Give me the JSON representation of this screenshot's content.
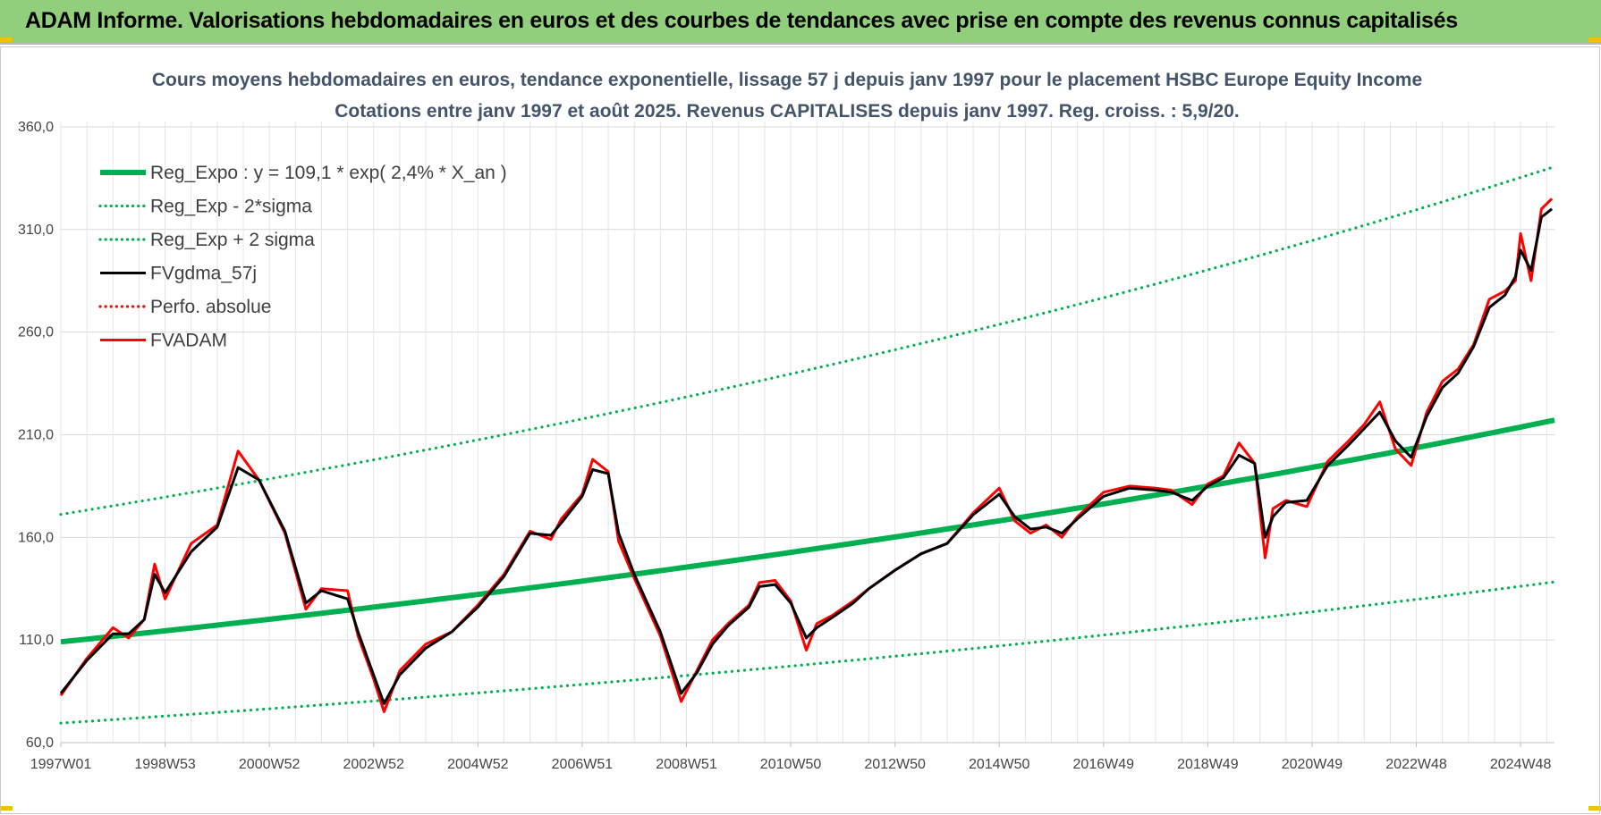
{
  "banner": {
    "text": "ADAM Informe. Valorisations hebdomadaires en euros et des courbes de tendances avec prise en compte des revenus connus capitalisés"
  },
  "colors": {
    "banner_bg": "#92cf7c",
    "reg_expo": "#00b050",
    "reg_bands": "#00b050",
    "fvgdma": "#000000",
    "fvadam": "#ff0000",
    "perfo": "#ff0000"
  },
  "chart_data": {
    "type": "line",
    "title": "Cours moyens hebdomadaires en euros, tendance exponentielle, lissage 57 j depuis janv 1997  pour le  placement HSBC Europe Equity Income",
    "subtitle": "Cotations entre janv 1997 et août 2025.  Revenus CAPITALISES depuis janv 1997.  Reg.  croiss. : 5,9/20.",
    "xlabel": "",
    "ylabel": "",
    "ylim": [
      60,
      380
    ],
    "x_range": [
      1997.0,
      2025.65
    ],
    "yticks": [
      "360,0",
      "310,0",
      "260,0",
      "210,0",
      "160,0",
      "110,0",
      "60,0"
    ],
    "ytick_values": [
      360,
      310,
      260,
      210,
      160,
      110,
      60
    ],
    "xticks": [
      "1997W01",
      "1998W53",
      "2000W52",
      "2002W52",
      "2004W52",
      "2006W51",
      "2008W51",
      "2010W50",
      "2012W50",
      "2014W50",
      "2016W49",
      "2018W49",
      "2020W49",
      "2022W48",
      "2024W48"
    ],
    "xtick_values": [
      1997.0,
      1999.0,
      2001.0,
      2003.0,
      2005.0,
      2007.0,
      2009.0,
      2011.0,
      2013.0,
      2015.0,
      2017.0,
      2019.0,
      2021.0,
      2023.0,
      2025.0
    ],
    "grid": true,
    "legend_position": "top-left",
    "legend": [
      {
        "name": "Reg_Expo : y = 109,1 * exp( 2,4% *  X_an )",
        "style": "solid-thick",
        "color": "#00b050"
      },
      {
        "name": "Reg_Exp - 2*sigma",
        "style": "dotted",
        "color": "#00b050"
      },
      {
        "name": "Reg_Exp + 2 sigma",
        "style": "dotted",
        "color": "#00b050"
      },
      {
        "name": "FVgdma_57j",
        "style": "solid",
        "color": "#000000"
      },
      {
        "name": "Perfo. absolue",
        "style": "dotted",
        "color": "#ff0000"
      },
      {
        "name": "FVADAM",
        "style": "solid",
        "color": "#ff0000"
      }
    ],
    "series": [
      {
        "name": "Reg_Expo : y = 109,1 * exp( 2,4% *  X_an )",
        "x": [
          1997.0,
          2001.0,
          2005.0,
          2009.0,
          2013.0,
          2017.0,
          2021.0,
          2025.65
        ],
        "y": [
          109.1,
          120.1,
          132.2,
          145.5,
          160.2,
          176.3,
          194.1,
          217.1
        ]
      },
      {
        "name": "Reg_Exp - 2*sigma",
        "x": [
          1997.0,
          2001.0,
          2005.0,
          2009.0,
          2013.0,
          2017.0,
          2021.0,
          2025.65
        ],
        "y": [
          69.5,
          76.5,
          84.2,
          92.7,
          102.1,
          112.4,
          123.7,
          138.3
        ]
      },
      {
        "name": "Reg_Exp + 2 sigma",
        "x": [
          1997.0,
          2001.0,
          2005.0,
          2009.0,
          2013.0,
          2017.0,
          2021.0,
          2025.65
        ],
        "y": [
          171.2,
          188.5,
          207.5,
          228.4,
          251.4,
          276.7,
          304.6,
          340.6
        ]
      },
      {
        "name": "FVADAM",
        "x": [
          1997.0,
          1997.5,
          1998.0,
          1998.3,
          1998.6,
          1998.8,
          1999.0,
          1999.5,
          2000.0,
          2000.4,
          2000.8,
          2001.3,
          2001.7,
          2002.0,
          2002.5,
          2002.7,
          2003.0,
          2003.2,
          2003.5,
          2004.0,
          2004.5,
          2005.0,
          2005.5,
          2006.0,
          2006.4,
          2006.6,
          2007.0,
          2007.2,
          2007.5,
          2007.7,
          2008.0,
          2008.5,
          2008.9,
          2009.2,
          2009.5,
          2009.8,
          2010.2,
          2010.4,
          2010.7,
          2011.0,
          2011.3,
          2011.5,
          2011.8,
          2012.2,
          2012.5,
          2013.0,
          2013.5,
          2014.0,
          2014.5,
          2015.0,
          2015.3,
          2015.6,
          2015.9,
          2016.2,
          2016.5,
          2017.0,
          2017.5,
          2018.0,
          2018.3,
          2018.7,
          2019.0,
          2019.3,
          2019.6,
          2019.9,
          2020.1,
          2020.25,
          2020.5,
          2020.9,
          2021.3,
          2021.7,
          2022.0,
          2022.3,
          2022.6,
          2022.9,
          2023.2,
          2023.5,
          2023.8,
          2024.1,
          2024.4,
          2024.7,
          2024.9,
          2025.0,
          2025.2,
          2025.4,
          2025.6
        ],
        "y": [
          83,
          101,
          116,
          111,
          120,
          147,
          130,
          157,
          166,
          202,
          188,
          162,
          125,
          135,
          134,
          112,
          91,
          75,
          95,
          108,
          114,
          127,
          142,
          163,
          159,
          169,
          181,
          198,
          192,
          158,
          140,
          112,
          80,
          95,
          110,
          118,
          127,
          138,
          139,
          129,
          105,
          118,
          122,
          129,
          135,
          144,
          152,
          157,
          172,
          184,
          168,
          162,
          166,
          160,
          170,
          182,
          185,
          184,
          183,
          176,
          186,
          190,
          206,
          196,
          150,
          174,
          178,
          175,
          197,
          207,
          215,
          226,
          203,
          195,
          221,
          236,
          242,
          254,
          276,
          280,
          285,
          308,
          285,
          320,
          325
        ]
      },
      {
        "name": "FVgdma_57j",
        "x": [
          1997.0,
          1997.5,
          1998.0,
          1998.3,
          1998.6,
          1998.8,
          1999.0,
          1999.5,
          2000.0,
          2000.4,
          2000.8,
          2001.3,
          2001.7,
          2002.0,
          2002.5,
          2002.7,
          2003.0,
          2003.2,
          2003.5,
          2004.0,
          2004.5,
          2005.0,
          2005.5,
          2006.0,
          2006.4,
          2006.6,
          2007.0,
          2007.2,
          2007.5,
          2007.7,
          2008.0,
          2008.5,
          2008.9,
          2009.2,
          2009.5,
          2009.8,
          2010.2,
          2010.4,
          2010.7,
          2011.0,
          2011.3,
          2011.5,
          2011.8,
          2012.2,
          2012.5,
          2013.0,
          2013.5,
          2014.0,
          2014.5,
          2015.0,
          2015.3,
          2015.6,
          2015.9,
          2016.2,
          2016.5,
          2017.0,
          2017.5,
          2018.0,
          2018.3,
          2018.7,
          2019.0,
          2019.3,
          2019.6,
          2019.9,
          2020.1,
          2020.25,
          2020.5,
          2020.9,
          2021.3,
          2021.7,
          2022.0,
          2022.3,
          2022.6,
          2022.9,
          2023.2,
          2023.5,
          2023.8,
          2024.1,
          2024.4,
          2024.7,
          2024.9,
          2025.0,
          2025.2,
          2025.4,
          2025.6
        ],
        "y": [
          84,
          100,
          113,
          113,
          120,
          142,
          133,
          153,
          165,
          194,
          188,
          163,
          128,
          134,
          130,
          114,
          93,
          79,
          93,
          106,
          114,
          126,
          141,
          162,
          161,
          167,
          180,
          193,
          191,
          162,
          142,
          114,
          84,
          94,
          108,
          117,
          126,
          136,
          137,
          128,
          111,
          116,
          121,
          128,
          135,
          144,
          152,
          157,
          171,
          181,
          170,
          164,
          165,
          162,
          169,
          180,
          184,
          183,
          182,
          178,
          185,
          189,
          200,
          196,
          160,
          170,
          177,
          178,
          195,
          205,
          213,
          221,
          207,
          199,
          219,
          233,
          240,
          253,
          272,
          278,
          287,
          300,
          290,
          316,
          320
        ]
      }
    ]
  }
}
